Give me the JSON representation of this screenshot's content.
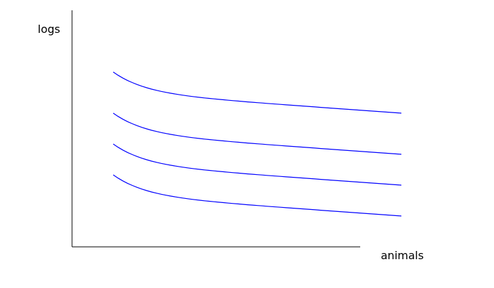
{
  "chart_data": {
    "type": "line",
    "xlabel": "animals",
    "ylabel": "logs",
    "ticks": false,
    "grid": false,
    "legend": false,
    "curve_shape": "decreasing convex, steep at the start then leveling off",
    "series_count": 4,
    "line_color": "#0000ff",
    "axis_color": "#000000"
  }
}
